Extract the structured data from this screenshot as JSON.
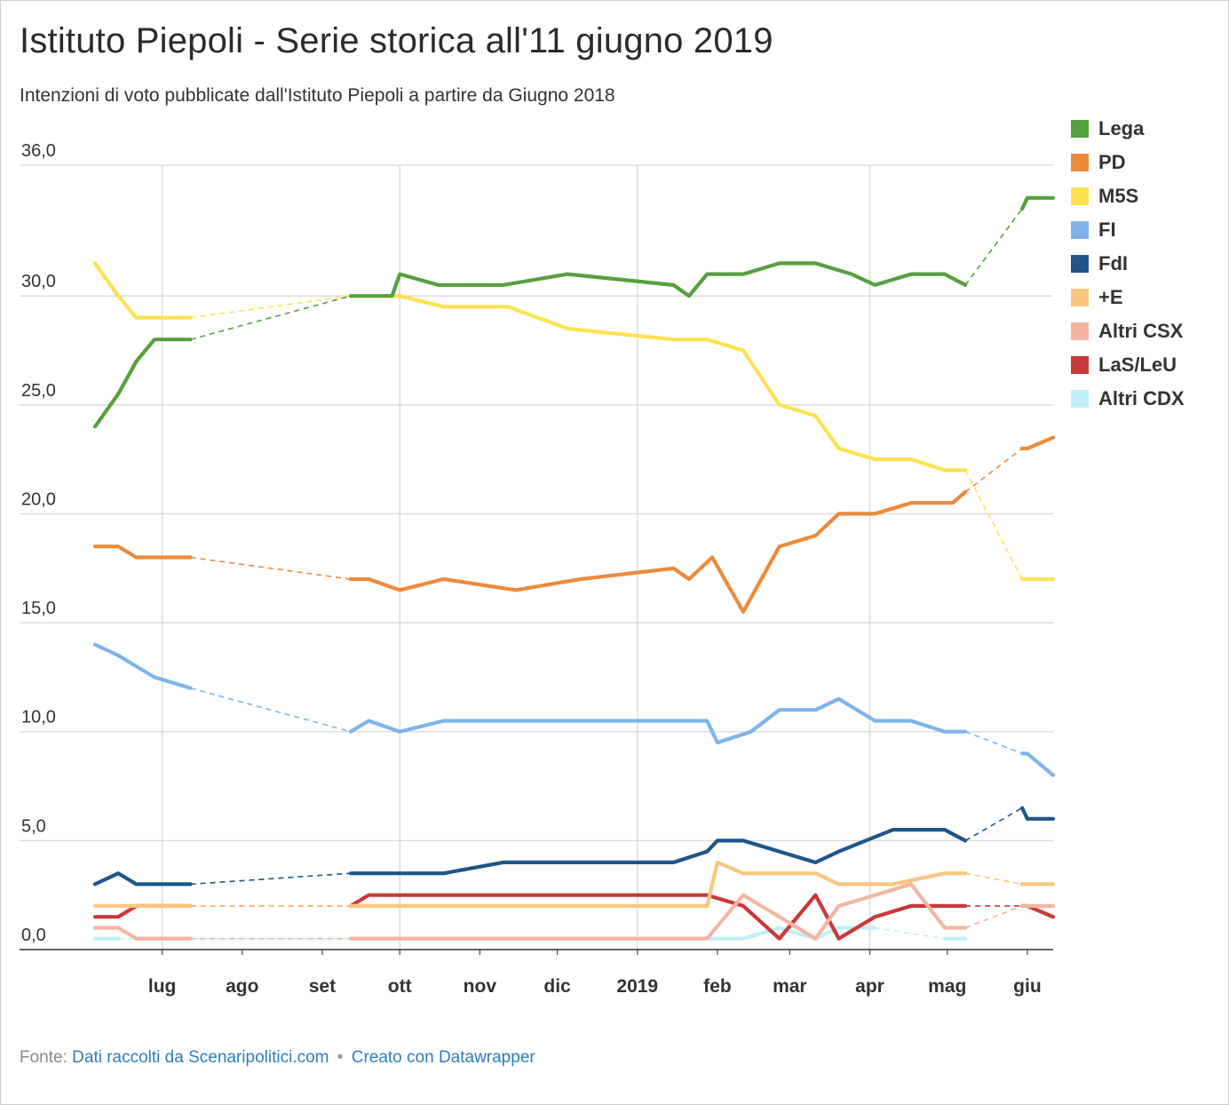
{
  "title": "Istituto Piepoli - Serie storica all'11 giugno 2019",
  "subtitle": "Intenzioni di voto pubblicate dall'Istituto Piepoli a partire da Giugno 2018",
  "footer": {
    "source_prefix": "Fonte:",
    "source_link": "Dati raccolti da Scenaripolitici.com",
    "separator": "•",
    "made_with": "Creato con Datawrapper"
  },
  "chart_data": {
    "type": "line",
    "title": "Istituto Piepoli - Serie storica all'11 giugno 2019",
    "xlabel": "",
    "ylabel": "",
    "ylim": [
      0,
      36
    ],
    "xlim": [
      "2018-06-05",
      "2019-06-11"
    ],
    "y_ticks": [
      {
        "value": 0,
        "label": "0,0"
      },
      {
        "value": 5,
        "label": "5,0"
      },
      {
        "value": 10,
        "label": "10,0"
      },
      {
        "value": 15,
        "label": "15,0"
      },
      {
        "value": 20,
        "label": "20,0"
      },
      {
        "value": 25,
        "label": "25,0"
      },
      {
        "value": 30,
        "label": "30,0"
      },
      {
        "value": 36,
        "label": "36,0"
      }
    ],
    "x_ticks": [
      {
        "date": "2018-07-01",
        "label": "lug"
      },
      {
        "date": "2018-08-01",
        "label": "ago"
      },
      {
        "date": "2018-09-01",
        "label": "set"
      },
      {
        "date": "2018-10-01",
        "label": "ott"
      },
      {
        "date": "2018-11-01",
        "label": "nov"
      },
      {
        "date": "2018-12-01",
        "label": "dic"
      },
      {
        "date": "2019-01-01",
        "label": "2019"
      },
      {
        "date": "2019-02-01",
        "label": "feb"
      },
      {
        "date": "2019-03-01",
        "label": "mar"
      },
      {
        "date": "2019-04-01",
        "label": "apr"
      },
      {
        "date": "2019-05-01",
        "label": "mag"
      },
      {
        "date": "2019-06-01",
        "label": "giu"
      }
    ],
    "vertical_gridlines": [
      "2018-07-01",
      "2018-10-01",
      "2019-01-01",
      "2019-04-01"
    ],
    "grid": true,
    "legend_position": "right",
    "colors": {
      "Lega": "#56a03f",
      "PD": "#ec8a3c",
      "M5S": "#fce250",
      "FI": "#7fb4ea",
      "FdI": "#1f5589",
      "+E": "#f8c67f",
      "Altri CSX": "#f3b5a1",
      "LaS/LeU": "#c93838",
      "Altri CDX": "#bff0f8"
    },
    "series": [
      {
        "name": "Lega",
        "segments": [
          [
            [
              "2018-06-05",
              24
            ],
            [
              "2018-06-14",
              25.5
            ],
            [
              "2018-06-21",
              27
            ],
            [
              "2018-06-28",
              28
            ],
            [
              "2018-07-12",
              28
            ]
          ],
          [
            [
              "2018-09-12",
              30
            ],
            [
              "2018-09-19",
              30
            ],
            [
              "2018-09-28",
              30
            ],
            [
              "2018-10-01",
              31
            ],
            [
              "2018-10-16",
              30.5
            ],
            [
              "2018-11-10",
              30.5
            ],
            [
              "2018-12-05",
              31
            ],
            [
              "2019-01-15",
              30.5
            ],
            [
              "2019-01-21",
              30
            ],
            [
              "2019-01-28",
              31
            ],
            [
              "2019-02-11",
              31
            ],
            [
              "2019-02-25",
              31.5
            ],
            [
              "2019-03-11",
              31.5
            ],
            [
              "2019-03-25",
              31
            ],
            [
              "2019-04-03",
              30.5
            ],
            [
              "2019-04-17",
              31
            ],
            [
              "2019-04-30",
              31
            ],
            [
              "2019-05-08",
              30.5
            ]
          ],
          [
            [
              "2019-05-30",
              34
            ],
            [
              "2019-06-01",
              34.5
            ],
            [
              "2019-06-11",
              34.5
            ]
          ]
        ]
      },
      {
        "name": "PD",
        "segments": [
          [
            [
              "2018-06-05",
              18.5
            ],
            [
              "2018-06-14",
              18.5
            ],
            [
              "2018-06-21",
              18
            ],
            [
              "2018-06-28",
              18
            ],
            [
              "2018-07-12",
              18
            ]
          ],
          [
            [
              "2018-09-12",
              17
            ],
            [
              "2018-09-19",
              17
            ],
            [
              "2018-10-01",
              16.5
            ],
            [
              "2018-10-18",
              17
            ],
            [
              "2018-11-15",
              16.5
            ],
            [
              "2018-12-10",
              17
            ],
            [
              "2019-01-15",
              17.5
            ],
            [
              "2019-01-21",
              17
            ],
            [
              "2019-01-30",
              18
            ],
            [
              "2019-02-11",
              15.5
            ],
            [
              "2019-02-25",
              18.5
            ],
            [
              "2019-03-11",
              19
            ],
            [
              "2019-03-20",
              20
            ],
            [
              "2019-04-03",
              20
            ],
            [
              "2019-04-17",
              20.5
            ],
            [
              "2019-05-03",
              20.5
            ],
            [
              "2019-05-08",
              21
            ]
          ],
          [
            [
              "2019-05-30",
              23
            ],
            [
              "2019-06-01",
              23
            ],
            [
              "2019-06-11",
              23.5
            ]
          ]
        ]
      },
      {
        "name": "M5S",
        "segments": [
          [
            [
              "2018-06-05",
              31.5
            ],
            [
              "2018-06-14",
              30
            ],
            [
              "2018-06-21",
              29
            ],
            [
              "2018-06-28",
              29
            ],
            [
              "2018-07-12",
              29
            ]
          ],
          [
            [
              "2018-09-12",
              30
            ],
            [
              "2018-09-19",
              30
            ],
            [
              "2018-10-01",
              30
            ],
            [
              "2018-10-18",
              29.5
            ],
            [
              "2018-11-12",
              29.5
            ],
            [
              "2018-12-05",
              28.5
            ],
            [
              "2019-01-15",
              28
            ],
            [
              "2019-01-28",
              28
            ],
            [
              "2019-02-11",
              27.5
            ],
            [
              "2019-02-25",
              25
            ],
            [
              "2019-03-11",
              24.5
            ],
            [
              "2019-03-20",
              23
            ],
            [
              "2019-04-03",
              22.5
            ],
            [
              "2019-04-17",
              22.5
            ],
            [
              "2019-04-30",
              22
            ],
            [
              "2019-05-08",
              22
            ]
          ],
          [
            [
              "2019-05-30",
              17
            ],
            [
              "2019-06-01",
              17
            ],
            [
              "2019-06-11",
              17
            ]
          ]
        ]
      },
      {
        "name": "FI",
        "segments": [
          [
            [
              "2018-06-05",
              14
            ],
            [
              "2018-06-14",
              13.5
            ],
            [
              "2018-06-28",
              12.5
            ],
            [
              "2018-07-12",
              12
            ]
          ],
          [
            [
              "2018-09-12",
              10
            ],
            [
              "2018-09-19",
              10.5
            ],
            [
              "2018-10-01",
              10
            ],
            [
              "2018-10-18",
              10.5
            ],
            [
              "2019-01-28",
              10.5
            ],
            [
              "2019-02-01",
              9.5
            ],
            [
              "2019-02-14",
              10
            ],
            [
              "2019-02-25",
              11
            ],
            [
              "2019-03-11",
              11
            ],
            [
              "2019-03-20",
              11.5
            ],
            [
              "2019-04-03",
              10.5
            ],
            [
              "2019-04-17",
              10.5
            ],
            [
              "2019-04-30",
              10
            ],
            [
              "2019-05-08",
              10
            ]
          ],
          [
            [
              "2019-05-30",
              9
            ],
            [
              "2019-06-01",
              9
            ],
            [
              "2019-06-11",
              8
            ]
          ]
        ]
      },
      {
        "name": "FdI",
        "segments": [
          [
            [
              "2018-06-05",
              3
            ],
            [
              "2018-06-14",
              3.5
            ],
            [
              "2018-06-21",
              3
            ],
            [
              "2018-06-28",
              3
            ],
            [
              "2018-07-12",
              3
            ]
          ],
          [
            [
              "2018-09-12",
              3.5
            ],
            [
              "2018-10-18",
              3.5
            ],
            [
              "2018-11-10",
              4
            ],
            [
              "2019-01-15",
              4
            ],
            [
              "2019-01-28",
              4.5
            ],
            [
              "2019-02-01",
              5
            ],
            [
              "2019-02-11",
              5
            ],
            [
              "2019-03-11",
              4
            ],
            [
              "2019-03-20",
              4.5
            ],
            [
              "2019-04-10",
              5.5
            ],
            [
              "2019-04-30",
              5.5
            ],
            [
              "2019-05-08",
              5
            ]
          ],
          [
            [
              "2019-05-30",
              6.5
            ],
            [
              "2019-06-01",
              6
            ],
            [
              "2019-06-11",
              6
            ]
          ]
        ]
      },
      {
        "name": "+E",
        "segments": [
          [
            [
              "2018-06-05",
              2
            ],
            [
              "2018-06-21",
              2
            ],
            [
              "2018-07-12",
              2
            ]
          ],
          [
            [
              "2018-09-12",
              2
            ],
            [
              "2019-01-28",
              2
            ],
            [
              "2019-02-01",
              4
            ],
            [
              "2019-02-11",
              3.5
            ],
            [
              "2019-03-11",
              3.5
            ],
            [
              "2019-03-20",
              3
            ],
            [
              "2019-04-10",
              3
            ],
            [
              "2019-04-30",
              3.5
            ],
            [
              "2019-05-08",
              3.5
            ]
          ],
          [
            [
              "2019-05-30",
              3
            ],
            [
              "2019-06-01",
              3
            ],
            [
              "2019-06-11",
              3
            ]
          ]
        ]
      },
      {
        "name": "Altri CSX",
        "segments": [
          [
            [
              "2018-06-05",
              1
            ],
            [
              "2018-06-14",
              1
            ],
            [
              "2018-06-21",
              0.5
            ],
            [
              "2018-07-12",
              0.5
            ]
          ],
          [
            [
              "2018-09-12",
              0.5
            ],
            [
              "2019-01-28",
              0.5
            ],
            [
              "2019-02-11",
              2.5
            ],
            [
              "2019-03-11",
              0.5
            ],
            [
              "2019-03-20",
              2
            ],
            [
              "2019-04-03",
              2.5
            ],
            [
              "2019-04-17",
              3
            ],
            [
              "2019-04-30",
              1
            ],
            [
              "2019-05-08",
              1
            ]
          ],
          [
            [
              "2019-05-30",
              2
            ],
            [
              "2019-06-01",
              2
            ],
            [
              "2019-06-11",
              2
            ]
          ]
        ]
      },
      {
        "name": "LaS/LeU",
        "segments": [
          [
            [
              "2018-06-05",
              1.5
            ],
            [
              "2018-06-14",
              1.5
            ],
            [
              "2018-06-21",
              2
            ],
            [
              "2018-07-12",
              2
            ]
          ],
          [
            [
              "2018-09-12",
              2
            ],
            [
              "2018-09-19",
              2.5
            ],
            [
              "2019-01-28",
              2.5
            ],
            [
              "2019-02-11",
              2
            ],
            [
              "2019-02-25",
              0.5
            ],
            [
              "2019-03-11",
              2.5
            ],
            [
              "2019-03-20",
              0.5
            ],
            [
              "2019-04-03",
              1.5
            ],
            [
              "2019-04-17",
              2
            ],
            [
              "2019-05-08",
              2
            ]
          ],
          [
            [
              "2019-05-30",
              2
            ],
            [
              "2019-06-01",
              2
            ],
            [
              "2019-06-11",
              1.5
            ]
          ]
        ]
      },
      {
        "name": "Altri CDX",
        "segments": [
          [
            [
              "2018-06-05",
              0.5
            ],
            [
              "2018-06-14",
              0.5
            ]
          ],
          [
            [
              "2019-01-28",
              0.5
            ],
            [
              "2019-02-11",
              0.5
            ],
            [
              "2019-02-25",
              1
            ],
            [
              "2019-03-11",
              0.5
            ],
            [
              "2019-03-20",
              1
            ],
            [
              "2019-04-03",
              1
            ]
          ],
          [
            [
              "2019-04-30",
              0.5
            ],
            [
              "2019-05-08",
              0.5
            ]
          ]
        ]
      }
    ]
  }
}
